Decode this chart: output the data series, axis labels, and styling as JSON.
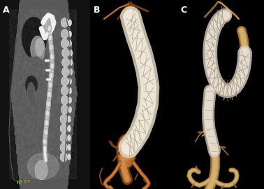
{
  "panel_labels": [
    "A",
    "B",
    "C"
  ],
  "panel_label_color": "white",
  "panel_label_fontsize": 9,
  "panel_label_fontweight": "bold",
  "background_color": "#000000",
  "panel_A": {
    "bg": "#111111",
    "body_mid": "#606060",
    "body_edge": "#383838",
    "spine_bright": "#dddddd",
    "aorta_bright": "#e8e8e8",
    "tissue_dark": "#1e1e1e",
    "tissue_mid": "#484848"
  },
  "panel_B": {
    "bg": "#000000",
    "vessel_orange": "#c87838",
    "vessel_light": "#d89858",
    "vessel_dark": "#7a4010",
    "stent_white": "#e0d4c0",
    "stent_mesh": "#f0ebe0"
  },
  "panel_C": {
    "bg": "#000000",
    "vessel_tan": "#c8a060",
    "vessel_light": "#dcc080",
    "vessel_dark": "#906830",
    "stent_white": "#d8ccc0",
    "stent_mesh": "#ece8e0"
  },
  "fig_width": 3.78,
  "fig_height": 2.7,
  "dpi": 100
}
